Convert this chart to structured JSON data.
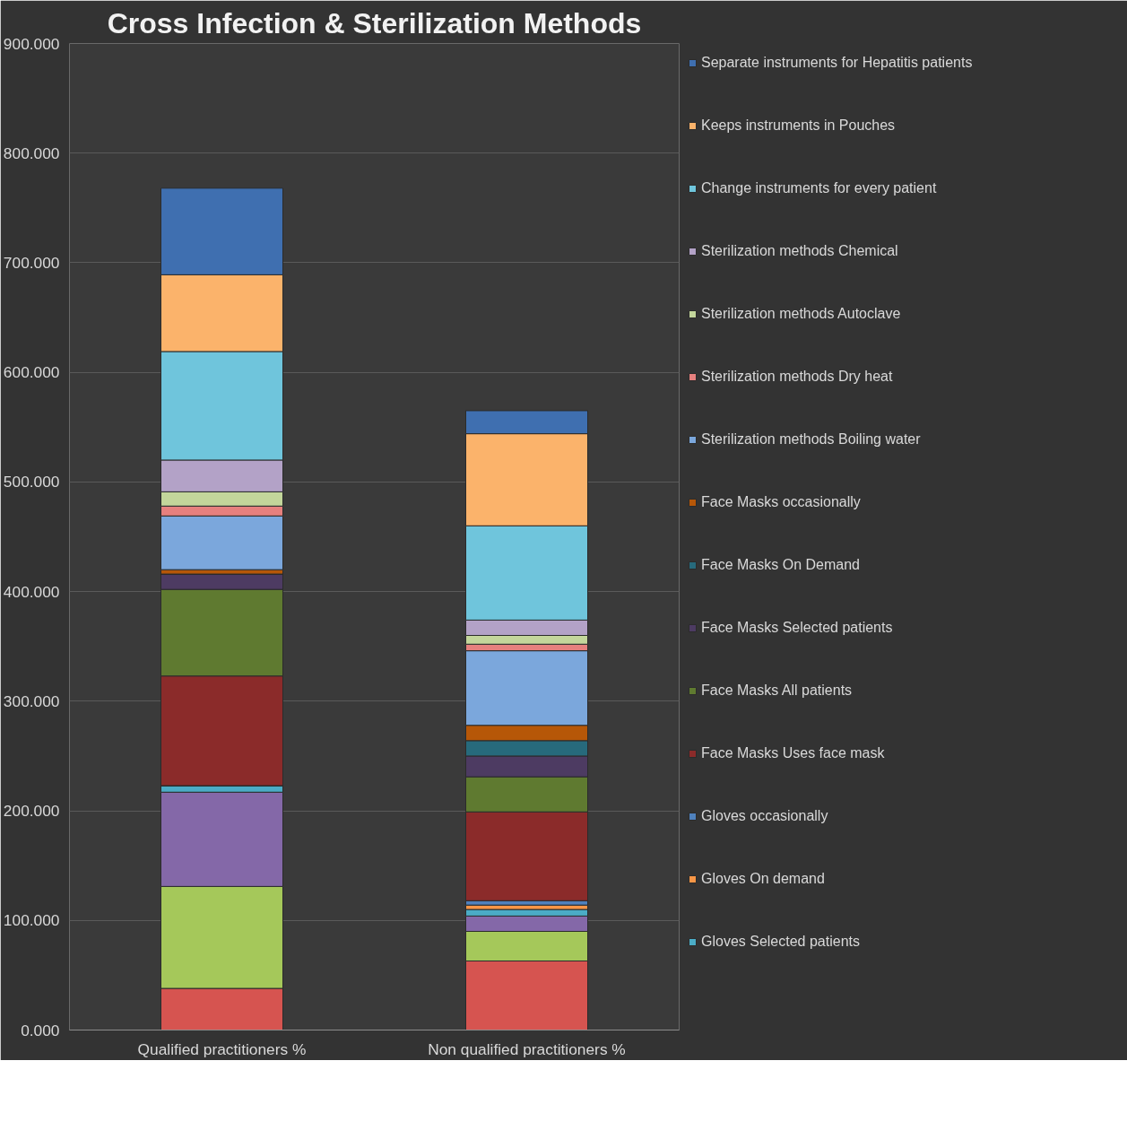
{
  "chart_data": {
    "type": "bar",
    "title": "Cross Infection & Sterilization Methods",
    "stacked": true,
    "categories": [
      "Qualified practitioners %",
      "Non qualified practitioners %"
    ],
    "ylim": [
      0,
      900
    ],
    "yticks": [
      {
        "value": 0,
        "label": "0.000"
      },
      {
        "value": 100,
        "label": "100.000"
      },
      {
        "value": 200,
        "label": "200.000"
      },
      {
        "value": 300,
        "label": "300.000"
      },
      {
        "value": 400,
        "label": "400.000"
      },
      {
        "value": 500,
        "label": "500.000"
      },
      {
        "value": 600,
        "label": "600.000"
      },
      {
        "value": 700,
        "label": "700.000"
      },
      {
        "value": 800,
        "label": "800.000"
      },
      {
        "value": 900,
        "label": "900.000"
      }
    ],
    "grid": "y",
    "legend": "right",
    "series": [
      {
        "color": "#d65450",
        "values": [
          38,
          63
        ]
      },
      {
        "color": "#a5c85a",
        "values": [
          93,
          27
        ]
      },
      {
        "color": "#8468a8",
        "values": [
          86,
          14
        ]
      },
      {
        "name": "Gloves Selected patients",
        "color": "#4bacc6",
        "values": [
          6,
          6
        ]
      },
      {
        "name": "Gloves On demand",
        "color": "#f79646",
        "values": [
          0,
          4
        ]
      },
      {
        "name": "Gloves occasionally",
        "color": "#4f81bd",
        "values": [
          0,
          4
        ]
      },
      {
        "name": "Face Masks Uses face mask",
        "color": "#8b2b2a",
        "values": [
          100,
          81
        ]
      },
      {
        "name": "Face Masks All patients",
        "color": "#5f7a30",
        "values": [
          79,
          32
        ]
      },
      {
        "name": "Face Masks Selected patients",
        "color": "#4d3b62",
        "values": [
          14,
          19
        ]
      },
      {
        "name": "Face Masks On Demand",
        "color": "#276a7c",
        "values": [
          0,
          14
        ]
      },
      {
        "name": "Face Masks occasionally",
        "color": "#b65708",
        "values": [
          4,
          14
        ]
      },
      {
        "name": "Sterilization methods Boiling water",
        "color": "#7ba7dc",
        "values": [
          49,
          68
        ]
      },
      {
        "name": "Sterilization methods Dry heat",
        "color": "#e6807e",
        "values": [
          9,
          6
        ]
      },
      {
        "name": "Sterilization methods Autoclave",
        "color": "#c3d69b",
        "values": [
          13,
          8
        ]
      },
      {
        "name": "Sterilization methods Chemical",
        "color": "#b3a2c7",
        "values": [
          29,
          14
        ]
      },
      {
        "name": "Change instruments for every patient",
        "color": "#6fc5dc",
        "values": [
          99,
          86
        ]
      },
      {
        "name": "Keeps instruments in Pouches",
        "color": "#fbb36b",
        "values": [
          70,
          84
        ]
      },
      {
        "name": "Separate instruments for Hepatitis patients",
        "color": "#3f6fb0",
        "values": [
          79,
          21
        ]
      }
    ]
  }
}
